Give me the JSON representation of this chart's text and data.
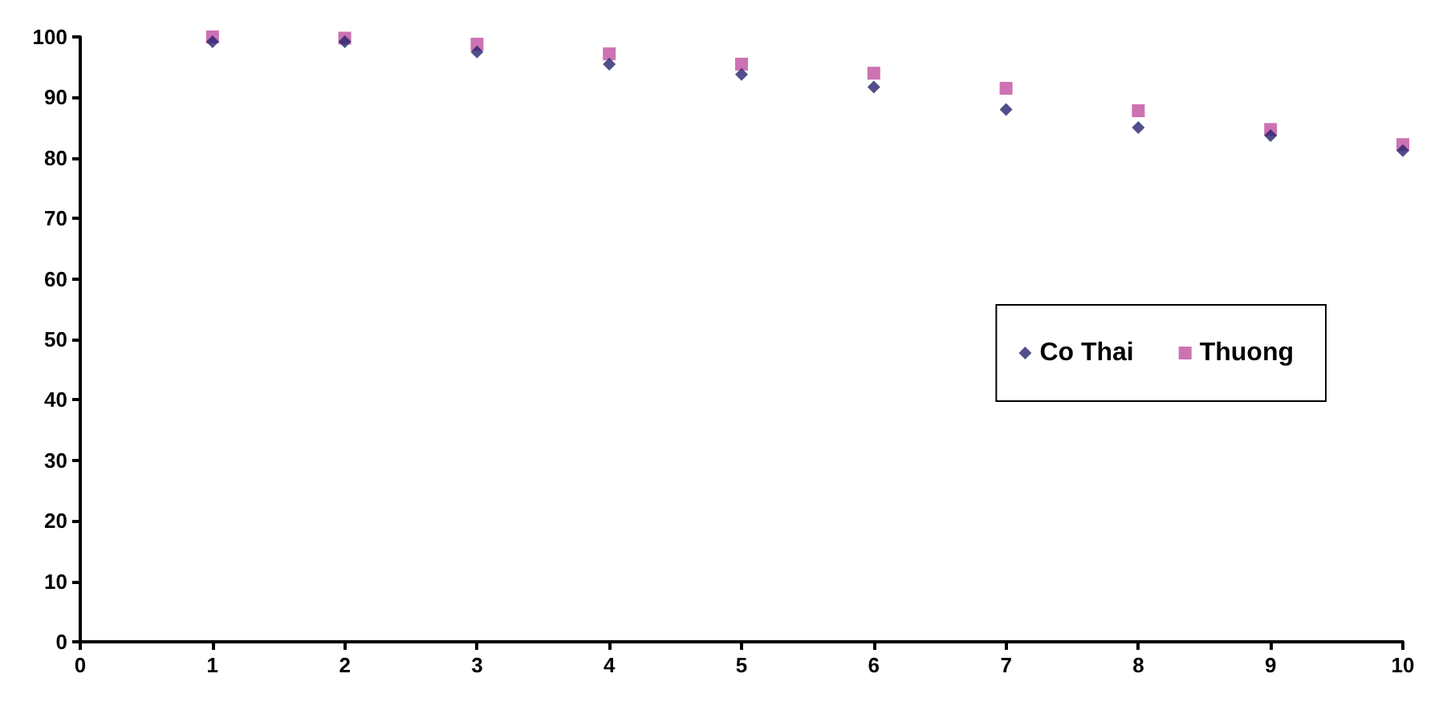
{
  "chart_data": {
    "type": "scatter",
    "x": [
      1,
      2,
      3,
      4,
      5,
      6,
      7,
      8,
      9,
      10
    ],
    "series": [
      {
        "name": "Co Thai",
        "color": "#25236e",
        "marker": "diamond",
        "values": [
          99.2,
          99.2,
          97.5,
          95.5,
          93.8,
          91.7,
          88,
          85,
          83.7,
          81.2
        ]
      },
      {
        "name": "Thuong",
        "color": "#c04f9f",
        "marker": "square",
        "values": [
          100,
          99.8,
          98.8,
          97.2,
          95.5,
          94,
          91.5,
          87.8,
          84.7,
          82.2
        ]
      }
    ],
    "xlim": [
      0,
      10
    ],
    "xticks": [
      0,
      1,
      2,
      3,
      4,
      5,
      6,
      7,
      8,
      9,
      10
    ],
    "ylim": [
      0,
      100
    ],
    "yticks": [
      0,
      10,
      20,
      30,
      40,
      50,
      60,
      70,
      80,
      90,
      100
    ],
    "grid": false,
    "legend": "right"
  }
}
